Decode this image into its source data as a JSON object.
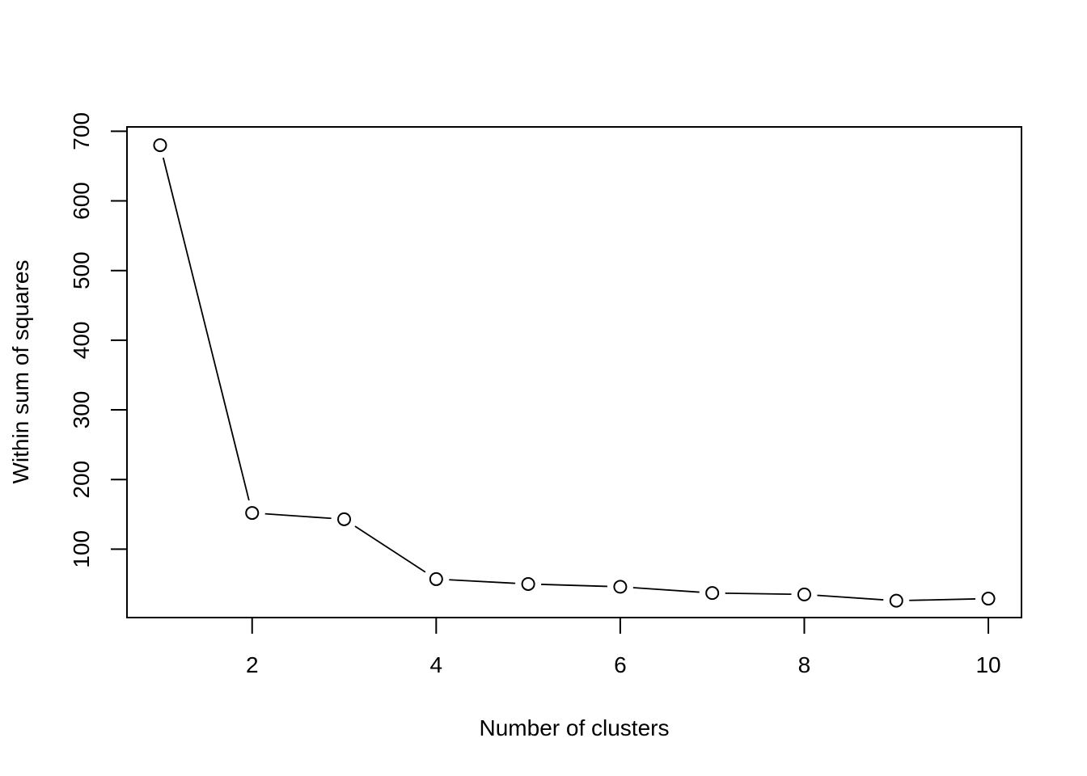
{
  "chart_data": {
    "type": "line",
    "title": "",
    "xlabel": "Number of clusters",
    "ylabel": "Within sum of squares",
    "x": [
      1,
      2,
      3,
      4,
      5,
      6,
      7,
      8,
      9,
      10
    ],
    "series": [
      {
        "values": [
          680,
          152,
          143,
          57,
          50,
          46,
          37,
          35,
          26,
          29
        ]
      }
    ],
    "xlim": [
      0.64,
      10.36
    ],
    "ylim": [
      1.8,
      706.2
    ],
    "x_ticks": [
      2,
      4,
      6,
      8,
      10
    ],
    "y_ticks": [
      100,
      200,
      300,
      400,
      500,
      600,
      700
    ],
    "marker": "open-circle",
    "grid": false,
    "legend": "none"
  }
}
